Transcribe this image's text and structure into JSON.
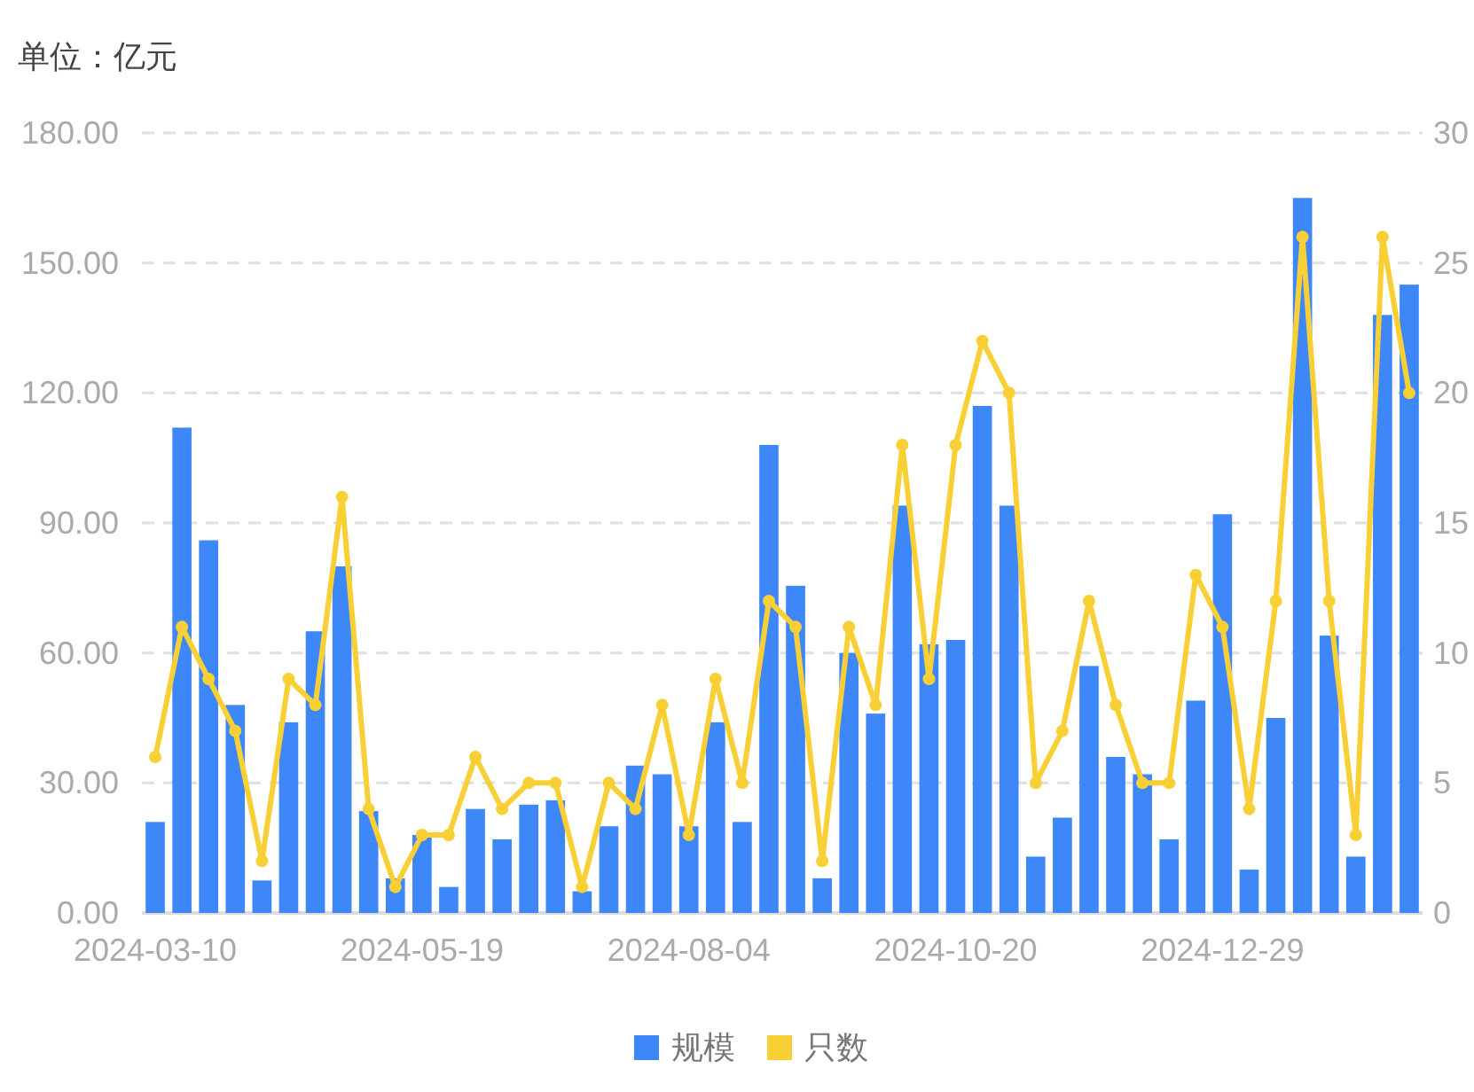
{
  "chart_data": {
    "type": "bar",
    "ylabel": "单位：亿元",
    "categories": [
      "2024-03-10",
      null,
      null,
      null,
      null,
      null,
      null,
      null,
      null,
      null,
      "2024-05-19",
      null,
      null,
      null,
      null,
      null,
      null,
      null,
      null,
      null,
      "2024-08-04",
      null,
      null,
      null,
      null,
      null,
      null,
      null,
      null,
      null,
      "2024-10-20",
      null,
      null,
      null,
      null,
      null,
      null,
      null,
      null,
      null,
      "2024-12-29",
      null,
      null,
      null,
      null,
      null,
      null,
      null
    ],
    "series": [
      {
        "name": "规模",
        "color": "#3d87f9",
        "values": [
          21,
          112,
          86,
          48,
          7.5,
          44,
          65,
          80,
          23.5,
          8,
          18,
          6,
          24,
          17,
          25,
          26,
          5,
          20,
          34,
          32,
          20,
          44,
          21,
          108,
          75.5,
          8,
          60,
          46,
          94,
          62,
          63,
          117,
          94,
          13,
          22,
          57,
          36,
          32,
          17,
          49,
          92,
          10,
          45,
          165,
          64,
          13,
          138,
          145
        ]
      },
      {
        "name": "只数",
        "type": "line",
        "axis": "y2",
        "color": "#f9cf36",
        "values": [
          6,
          11,
          9,
          7,
          2,
          9,
          8,
          16,
          4,
          1,
          3,
          3,
          6,
          4,
          5,
          5,
          1,
          5,
          4,
          8,
          3,
          9,
          5,
          12,
          11,
          2,
          11,
          8,
          18,
          9,
          18,
          22,
          20,
          5,
          7,
          12,
          8,
          5,
          5,
          13,
          11,
          4,
          12,
          26,
          12,
          3,
          26,
          20
        ]
      }
    ],
    "ylim": [
      0,
      180
    ],
    "yticks": [
      {
        "value": 0,
        "label": "0.00"
      },
      {
        "value": 30,
        "label": "30.00"
      },
      {
        "value": 60,
        "label": "60.00"
      },
      {
        "value": 90,
        "label": "90.00"
      },
      {
        "value": 120,
        "label": "120.00"
      },
      {
        "value": 150,
        "label": "150.00"
      },
      {
        "value": 180,
        "label": "180.00"
      }
    ],
    "y2lim": [
      0,
      30
    ],
    "y2ticks": [
      0,
      5,
      10,
      15,
      20,
      25,
      30
    ],
    "grid": "y",
    "legend": "bottom",
    "marker": "circle",
    "line_style": "solid"
  }
}
